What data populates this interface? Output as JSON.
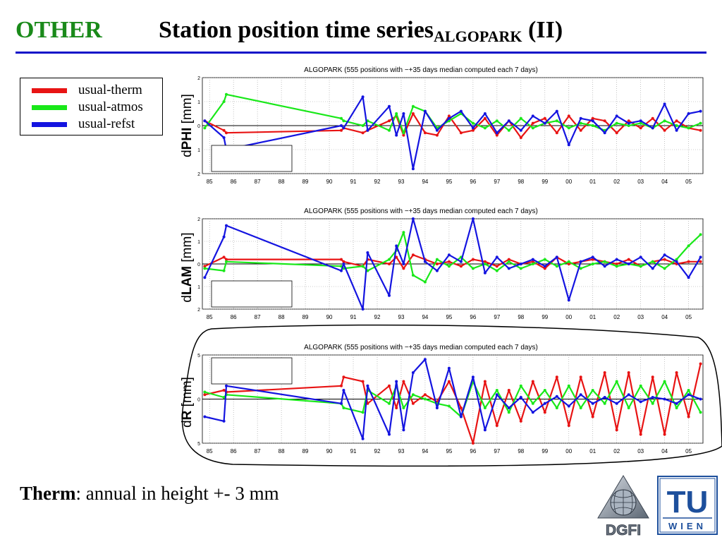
{
  "slide": {
    "section_tag": "OTHER",
    "title_main": "Station position time series",
    "title_sub": "ALGOPARK",
    "title_suffix": " (II)"
  },
  "legend": [
    {
      "label": "usual-therm",
      "color": "#e81414"
    },
    {
      "label": "usual-atmos",
      "color": "#19e819"
    },
    {
      "label": "usual-refst",
      "color": "#1414e0"
    }
  ],
  "panels": [
    {
      "key": "phi",
      "title": "ALGOPARK (555 positions with −+35 days median computed each 7 days)",
      "ylabel_pre": "d",
      "ylabel_key": "PHI",
      "ylabel_unit": " [mm]",
      "yticks": [
        "2",
        "1",
        "0",
        "1",
        "2"
      ]
    },
    {
      "key": "lam",
      "title": "ALGOPARK (555 positions with −+35 days median computed each 7 days)",
      "ylabel_pre": "d",
      "ylabel_key": "LAM",
      "ylabel_unit": " [mm]",
      "yticks": [
        "2",
        "1",
        "0",
        "1",
        "2"
      ]
    },
    {
      "key": "r",
      "title": "ALGOPARK (555 positions with −+35 days median computed each 7 days)",
      "ylabel_pre": "d",
      "ylabel_key": "R",
      "ylabel_unit": " [mm]",
      "yticks": [
        "5",
        "0",
        "5"
      ]
    }
  ],
  "xticks": [
    "85",
    "86",
    "87",
    "88",
    "89",
    "90",
    "91",
    "92",
    "93",
    "94",
    "95",
    "96",
    "97",
    "98",
    "99",
    "00",
    "01",
    "02",
    "03",
    "04",
    "05"
  ],
  "footer": {
    "bold": "Therm",
    "rest": ": annual in height +- 3 mm"
  },
  "logos": {
    "dgfi": "DGFI",
    "tu_top": "TU",
    "tu_bottom": "WIEN"
  },
  "chart_data": [
    {
      "type": "line",
      "title": "ALGOPARK (555 positions with −+35 days median computed each 7 days)",
      "ylabel": "dPHI [mm]",
      "ylim": [
        -2,
        2
      ],
      "xlim": [
        1984.7,
        2005.6
      ],
      "grid": true,
      "x_tick_labels": [
        "85",
        "86",
        "87",
        "88",
        "89",
        "90",
        "91",
        "92",
        "93",
        "94",
        "95",
        "96",
        "97",
        "98",
        "99",
        "00",
        "01",
        "02",
        "03",
        "04",
        "05"
      ],
      "series": [
        {
          "name": "usual-therm",
          "color": "#e81414",
          "x": [
            1984.8,
            1985.6,
            1985.7,
            1990.5,
            1990.6,
            1991.4,
            1991.6,
            1992.5,
            1992.8,
            1993.1,
            1993.5,
            1994.0,
            1994.5,
            1995.0,
            1995.5,
            1996.0,
            1996.5,
            1997.0,
            1997.5,
            1998.0,
            1998.5,
            1999.0,
            1999.5,
            2000.0,
            2000.5,
            2001.0,
            2001.5,
            2002.0,
            2002.5,
            2003.0,
            2003.5,
            2004.0,
            2004.5,
            2005.0,
            2005.5
          ],
          "y": [
            0.2,
            -0.2,
            -0.3,
            -0.2,
            -0.1,
            -0.3,
            -0.2,
            0.2,
            0.4,
            -0.4,
            0.5,
            -0.3,
            -0.4,
            0.4,
            -0.3,
            -0.2,
            0.3,
            -0.4,
            0.2,
            -0.5,
            0.1,
            0.3,
            -0.3,
            0.4,
            -0.2,
            0.3,
            0.2,
            -0.3,
            0.2,
            -0.1,
            0.3,
            -0.2,
            0.2,
            -0.1,
            -0.2
          ]
        },
        {
          "name": "usual-atmos",
          "color": "#19e819",
          "x": [
            1984.8,
            1985.6,
            1985.7,
            1990.5,
            1990.6,
            1991.4,
            1991.6,
            1992.5,
            1992.8,
            1993.1,
            1993.5,
            1994.0,
            1994.5,
            1995.0,
            1995.5,
            1996.0,
            1996.5,
            1997.0,
            1997.5,
            1998.0,
            1998.5,
            1999.0,
            1999.5,
            2000.0,
            2000.5,
            2001.0,
            2001.5,
            2002.0,
            2002.5,
            2003.0,
            2003.5,
            2004.0,
            2004.5,
            2005.0,
            2005.5
          ],
          "y": [
            -0.1,
            1.0,
            1.3,
            0.3,
            0.2,
            0.0,
            0.2,
            -0.2,
            0.5,
            -0.3,
            0.8,
            0.6,
            -0.1,
            0.2,
            0.5,
            0.1,
            -0.1,
            0.2,
            -0.2,
            0.3,
            -0.1,
            0.1,
            0.2,
            -0.1,
            0.1,
            0.0,
            -0.2,
            0.1,
            0.0,
            0.1,
            -0.1,
            0.2,
            0.0,
            -0.1,
            0.1
          ]
        },
        {
          "name": "usual-refst",
          "color": "#1414e0",
          "x": [
            1984.8,
            1985.6,
            1985.7,
            1990.5,
            1990.6,
            1991.4,
            1991.6,
            1992.5,
            1992.8,
            1993.1,
            1993.5,
            1994.0,
            1994.5,
            1995.0,
            1995.5,
            1996.0,
            1996.5,
            1997.0,
            1997.5,
            1998.0,
            1998.5,
            1999.0,
            1999.5,
            2000.0,
            2000.5,
            2001.0,
            2001.5,
            2002.0,
            2002.5,
            2003.0,
            2003.5,
            2004.0,
            2004.5,
            2005.0,
            2005.5
          ],
          "y": [
            0.2,
            -0.5,
            -1.0,
            0.0,
            -0.1,
            1.2,
            -0.2,
            0.8,
            -0.4,
            0.5,
            -1.8,
            0.6,
            -0.2,
            0.3,
            0.6,
            -0.1,
            0.5,
            -0.3,
            0.2,
            -0.2,
            0.4,
            0.1,
            0.6,
            -0.8,
            0.3,
            0.2,
            -0.3,
            0.4,
            0.1,
            0.2,
            -0.1,
            0.9,
            -0.2,
            0.5,
            0.6
          ]
        }
      ]
    },
    {
      "type": "line",
      "title": "ALGOPARK (555 positions with −+35 days median computed each 7 days)",
      "ylabel": "dLAM [mm]",
      "ylim": [
        -2,
        2
      ],
      "xlim": [
        1984.7,
        2005.6
      ],
      "grid": true,
      "x_tick_labels": [
        "85",
        "86",
        "87",
        "88",
        "89",
        "90",
        "91",
        "92",
        "93",
        "94",
        "95",
        "96",
        "97",
        "98",
        "99",
        "00",
        "01",
        "02",
        "03",
        "04",
        "05"
      ],
      "series": [
        {
          "name": "usual-therm",
          "color": "#e81414",
          "x": [
            1984.8,
            1985.6,
            1985.7,
            1990.5,
            1990.6,
            1991.4,
            1991.6,
            1992.5,
            1992.8,
            1993.1,
            1993.5,
            1994.0,
            1994.5,
            1995.0,
            1995.5,
            1996.0,
            1996.5,
            1997.0,
            1997.5,
            1998.0,
            1998.5,
            1999.0,
            1999.5,
            2000.0,
            2000.5,
            2001.0,
            2001.5,
            2002.0,
            2002.5,
            2003.0,
            2003.5,
            2004.0,
            2004.5,
            2005.0,
            2005.5
          ],
          "y": [
            -0.1,
            0.3,
            0.2,
            0.2,
            0.1,
            -0.1,
            0.2,
            0.0,
            0.3,
            -0.2,
            0.4,
            0.2,
            0.0,
            0.1,
            -0.1,
            0.2,
            0.1,
            -0.1,
            0.2,
            0.0,
            0.1,
            -0.2,
            0.3,
            0.0,
            0.1,
            0.2,
            0.1,
            0.0,
            0.2,
            -0.1,
            0.1,
            0.2,
            0.0,
            0.1,
            0.1
          ]
        },
        {
          "name": "usual-atmos",
          "color": "#19e819",
          "x": [
            1984.8,
            1985.6,
            1985.7,
            1990.5,
            1990.6,
            1991.4,
            1991.6,
            1992.5,
            1992.8,
            1993.1,
            1993.5,
            1994.0,
            1994.5,
            1995.0,
            1995.5,
            1996.0,
            1996.5,
            1997.0,
            1997.5,
            1998.0,
            1998.5,
            1999.0,
            1999.5,
            2000.0,
            2000.5,
            2001.0,
            2001.5,
            2002.0,
            2002.5,
            2003.0,
            2003.5,
            2004.0,
            2004.5,
            2005.0,
            2005.5
          ],
          "y": [
            -0.2,
            -0.3,
            0.1,
            -0.1,
            -0.2,
            -0.1,
            -0.3,
            0.2,
            0.6,
            1.4,
            -0.5,
            -0.8,
            0.2,
            -0.1,
            0.3,
            -0.2,
            0.0,
            -0.3,
            0.1,
            -0.2,
            0.0,
            0.2,
            -0.1,
            0.1,
            -0.2,
            0.0,
            0.1,
            -0.1,
            0.0,
            -0.1,
            0.1,
            -0.2,
            0.2,
            0.8,
            1.3
          ]
        },
        {
          "name": "usual-refst",
          "color": "#1414e0",
          "x": [
            1984.8,
            1985.6,
            1985.7,
            1990.5,
            1990.6,
            1991.4,
            1991.6,
            1992.5,
            1992.8,
            1993.1,
            1993.5,
            1994.0,
            1994.5,
            1995.0,
            1995.5,
            1996.0,
            1996.5,
            1997.0,
            1997.5,
            1998.0,
            1998.5,
            1999.0,
            1999.5,
            2000.0,
            2000.5,
            2001.0,
            2001.5,
            2002.0,
            2002.5,
            2003.0,
            2003.5,
            2004.0,
            2004.5,
            2005.0,
            2005.5
          ],
          "y": [
            -0.6,
            1.2,
            1.7,
            -0.3,
            0.0,
            -2.0,
            0.5,
            -1.4,
            0.8,
            0.0,
            2.0,
            0.1,
            -0.3,
            0.4,
            0.1,
            2.0,
            -0.4,
            0.3,
            -0.2,
            0.0,
            0.2,
            -0.1,
            0.3,
            -1.6,
            0.1,
            0.3,
            -0.1,
            0.2,
            0.0,
            0.3,
            -0.2,
            0.4,
            0.1,
            -0.6,
            0.3
          ]
        }
      ]
    },
    {
      "type": "line",
      "title": "ALGOPARK (555 positions with −+35 days median computed each 7 days)",
      "ylabel": "dR [mm]",
      "ylim": [
        -5,
        5
      ],
      "xlim": [
        1984.7,
        2005.6
      ],
      "grid": true,
      "x_tick_labels": [
        "85",
        "86",
        "87",
        "88",
        "89",
        "90",
        "91",
        "92",
        "93",
        "94",
        "95",
        "96",
        "97",
        "98",
        "99",
        "00",
        "01",
        "02",
        "03",
        "04",
        "05"
      ],
      "series": [
        {
          "name": "usual-therm",
          "color": "#e81414",
          "x": [
            1984.8,
            1985.6,
            1985.7,
            1990.5,
            1990.6,
            1991.4,
            1991.6,
            1992.5,
            1992.8,
            1993.1,
            1993.5,
            1994.0,
            1994.5,
            1995.0,
            1995.5,
            1996.0,
            1996.5,
            1997.0,
            1997.5,
            1998.0,
            1998.5,
            1999.0,
            1999.5,
            2000.0,
            2000.5,
            2001.0,
            2001.5,
            2002.0,
            2002.5,
            2003.0,
            2003.5,
            2004.0,
            2004.5,
            2005.0,
            2005.5
          ],
          "y": [
            0.5,
            1.0,
            0.8,
            1.5,
            2.5,
            2.0,
            -0.5,
            1.5,
            -1.0,
            2.0,
            -0.5,
            0.5,
            -0.3,
            2.0,
            -1.0,
            -5.0,
            2.0,
            -3.0,
            1.0,
            -2.5,
            2.0,
            -1.5,
            2.5,
            -3.0,
            2.5,
            -2.0,
            3.0,
            -3.5,
            3.0,
            -4.0,
            2.5,
            -4.0,
            3.0,
            -2.0,
            4.0
          ]
        },
        {
          "name": "usual-atmos",
          "color": "#19e819",
          "x": [
            1984.8,
            1985.6,
            1985.7,
            1990.5,
            1990.6,
            1991.4,
            1991.6,
            1992.5,
            1992.8,
            1993.1,
            1993.5,
            1994.0,
            1994.5,
            1995.0,
            1995.5,
            1996.0,
            1996.5,
            1997.0,
            1997.5,
            1998.0,
            1998.5,
            1999.0,
            1999.5,
            2000.0,
            2000.5,
            2001.0,
            2001.5,
            2002.0,
            2002.5,
            2003.0,
            2003.5,
            2004.0,
            2004.5,
            2005.0,
            2005.5
          ],
          "y": [
            0.8,
            0.2,
            0.5,
            -0.5,
            -1.0,
            -1.5,
            1.0,
            -0.5,
            1.5,
            -1.0,
            0.5,
            0.0,
            -0.5,
            -0.8,
            -2.0,
            2.0,
            -1.0,
            1.0,
            -1.5,
            1.5,
            -0.5,
            1.0,
            -1.0,
            1.5,
            -1.0,
            1.0,
            -0.5,
            2.0,
            -1.0,
            1.5,
            -0.5,
            2.0,
            -1.0,
            1.0,
            -1.5
          ]
        },
        {
          "name": "usual-refst",
          "color": "#1414e0",
          "x": [
            1984.8,
            1985.6,
            1985.7,
            1990.5,
            1990.6,
            1991.4,
            1991.6,
            1992.5,
            1992.8,
            1993.1,
            1993.5,
            1994.0,
            1994.5,
            1995.0,
            1995.5,
            1996.0,
            1996.5,
            1997.0,
            1997.5,
            1998.0,
            1998.5,
            1999.0,
            1999.5,
            2000.0,
            2000.5,
            2001.0,
            2001.5,
            2002.0,
            2002.5,
            2003.0,
            2003.5,
            2004.0,
            2004.5,
            2005.0,
            2005.5
          ],
          "y": [
            -2.0,
            -2.5,
            1.5,
            -0.5,
            1.0,
            -4.5,
            1.5,
            -4.0,
            2.0,
            -3.5,
            3.0,
            4.5,
            -1.0,
            3.5,
            -2.0,
            2.5,
            -3.5,
            0.5,
            -1.0,
            0.2,
            -1.5,
            -0.5,
            0.3,
            -0.8,
            0.5,
            -0.5,
            0.2,
            -0.5,
            0.5,
            -0.3,
            0.2,
            0.0,
            -0.5,
            0.5,
            0.0
          ]
        }
      ]
    }
  ]
}
